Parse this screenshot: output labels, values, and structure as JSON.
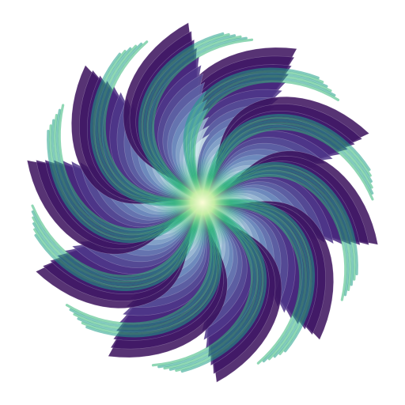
{
  "artwork": {
    "subject": "rosette",
    "petal_count": 10,
    "spin_direction": "clockwise",
    "background_color": "#ffffff",
    "colors": {
      "outer_edge": "#3a0f5c",
      "outer_mid": "#4b2d84",
      "inner_band": "#6f8fbf",
      "pale_fill": "#cfe9ec",
      "ribbon": "#1f9e89",
      "ribbon_light": "#35b779",
      "center_glow": "#fdfdd8"
    }
  }
}
